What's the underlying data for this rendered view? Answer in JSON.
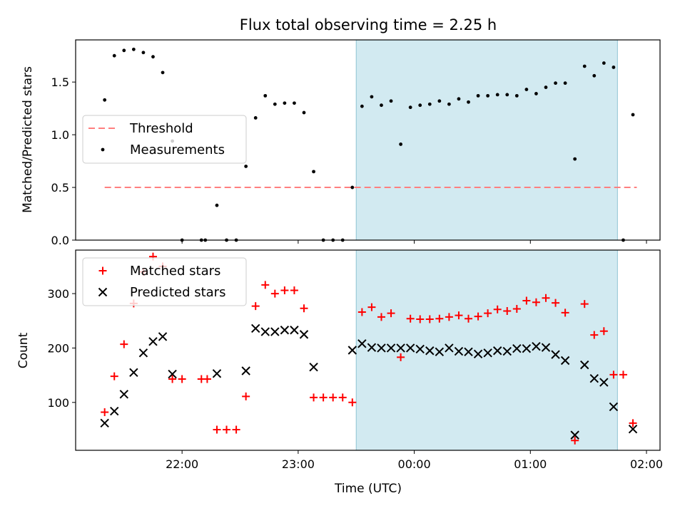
{
  "title": "Flux total observing time = 2.25 h",
  "colors": {
    "window": "#add8e6",
    "window_edge": "#8fc3d3",
    "threshold": "#ff7f7f",
    "measurement": "#000000",
    "matched": "#ff0000",
    "predicted": "#000000"
  },
  "chart_data": [
    {
      "type": "scatter",
      "panel": "top",
      "ylabel": "Matched/Predicted stars",
      "ylim": [
        0,
        1.9
      ],
      "yticks": [
        0.0,
        0.5,
        1.0,
        1.5
      ],
      "ytick_labels": [
        "0.0",
        "0.5",
        "1.0",
        "1.5"
      ],
      "xlim": [
        "21:05",
        "02:07"
      ],
      "xticks": [
        "22:00",
        "23:00",
        "00:00",
        "01:00",
        "02:00"
      ],
      "shaded_window": [
        "23:30",
        "01:45"
      ],
      "threshold": {
        "name": "Threshold",
        "y": 0.5,
        "x": [
          "21:20",
          "01:55"
        ]
      },
      "legend": {
        "location": "center-left",
        "entries": [
          "Threshold",
          "Measurements"
        ]
      },
      "series": [
        {
          "name": "Measurements",
          "marker": "dot",
          "points": [
            [
              "21:20",
              1.33
            ],
            [
              "21:25",
              1.75
            ],
            [
              "21:30",
              1.8
            ],
            [
              "21:35",
              1.81
            ],
            [
              "21:40",
              1.78
            ],
            [
              "21:45",
              1.74
            ],
            [
              "21:50",
              1.59
            ],
            [
              "21:55",
              0.94
            ],
            [
              "22:00",
              0.0
            ],
            [
              "22:10",
              0.0
            ],
            [
              "22:12",
              0.0
            ],
            [
              "22:18",
              0.33
            ],
            [
              "22:23",
              0.0
            ],
            [
              "22:28",
              0.0
            ],
            [
              "22:33",
              0.7
            ],
            [
              "22:38",
              1.16
            ],
            [
              "22:43",
              1.37
            ],
            [
              "22:48",
              1.29
            ],
            [
              "22:53",
              1.3
            ],
            [
              "22:58",
              1.3
            ],
            [
              "23:03",
              1.21
            ],
            [
              "23:08",
              0.65
            ],
            [
              "23:13",
              0.0
            ],
            [
              "23:18",
              0.0
            ],
            [
              "23:23",
              0.0
            ],
            [
              "23:28",
              0.5
            ],
            [
              "23:33",
              1.27
            ],
            [
              "23:38",
              1.36
            ],
            [
              "23:43",
              1.28
            ],
            [
              "23:48",
              1.32
            ],
            [
              "23:53",
              0.91
            ],
            [
              "23:58",
              1.26
            ],
            [
              "00:03",
              1.28
            ],
            [
              "00:08",
              1.29
            ],
            [
              "00:13",
              1.32
            ],
            [
              "00:18",
              1.29
            ],
            [
              "00:23",
              1.34
            ],
            [
              "00:28",
              1.31
            ],
            [
              "00:33",
              1.37
            ],
            [
              "00:38",
              1.37
            ],
            [
              "00:43",
              1.38
            ],
            [
              "00:48",
              1.38
            ],
            [
              "00:53",
              1.37
            ],
            [
              "00:58",
              1.43
            ],
            [
              "01:03",
              1.39
            ],
            [
              "01:08",
              1.45
            ],
            [
              "01:13",
              1.49
            ],
            [
              "01:18",
              1.49
            ],
            [
              "01:23",
              0.77
            ],
            [
              "01:28",
              1.65
            ],
            [
              "01:33",
              1.56
            ],
            [
              "01:38",
              1.68
            ],
            [
              "01:43",
              1.64
            ],
            [
              "01:48",
              0.0
            ],
            [
              "01:53",
              1.19
            ]
          ]
        }
      ]
    },
    {
      "type": "scatter",
      "panel": "bottom",
      "xlabel": "Time (UTC)",
      "ylabel": "Count",
      "ylim": [
        12,
        380
      ],
      "yticks": [
        100,
        200,
        300
      ],
      "ytick_labels": [
        "100",
        "200",
        "300"
      ],
      "xlim": [
        "21:05",
        "02:07"
      ],
      "xticks": [
        "22:00",
        "23:00",
        "00:00",
        "01:00",
        "02:00"
      ],
      "xtick_labels": [
        "22:00",
        "23:00",
        "00:00",
        "01:00",
        "02:00"
      ],
      "shaded_window": [
        "23:30",
        "01:45"
      ],
      "legend": {
        "location": "top-left",
        "entries": [
          "Matched stars",
          "Predicted stars"
        ]
      },
      "series": [
        {
          "name": "Matched stars",
          "marker": "plus",
          "points": [
            [
              "21:20",
              82
            ],
            [
              "21:25",
              148
            ],
            [
              "21:30",
              207
            ],
            [
              "21:35",
              282
            ],
            [
              "21:40",
              340
            ],
            [
              "21:45",
              368
            ],
            [
              "21:50",
              350
            ],
            [
              "21:55",
              143
            ],
            [
              "22:00",
              143
            ],
            [
              "22:10",
              143
            ],
            [
              "22:13",
              143
            ],
            [
              "22:18",
              50
            ],
            [
              "22:23",
              50
            ],
            [
              "22:28",
              50
            ],
            [
              "22:33",
              111
            ],
            [
              "22:38",
              277
            ],
            [
              "22:43",
              316
            ],
            [
              "22:48",
              300
            ],
            [
              "22:53",
              306
            ],
            [
              "22:58",
              306
            ],
            [
              "23:03",
              273
            ],
            [
              "23:08",
              109
            ],
            [
              "23:13",
              109
            ],
            [
              "23:18",
              109
            ],
            [
              "23:23",
              109
            ],
            [
              "23:28",
              100
            ],
            [
              "23:33",
              266
            ],
            [
              "23:38",
              275
            ],
            [
              "23:43",
              257
            ],
            [
              "23:48",
              264
            ],
            [
              "23:53",
              183
            ],
            [
              "23:58",
              254
            ],
            [
              "00:03",
              253
            ],
            [
              "00:08",
              253
            ],
            [
              "00:13",
              254
            ],
            [
              "00:18",
              257
            ],
            [
              "00:23",
              260
            ],
            [
              "00:28",
              254
            ],
            [
              "00:33",
              258
            ],
            [
              "00:38",
              264
            ],
            [
              "00:43",
              271
            ],
            [
              "00:48",
              268
            ],
            [
              "00:53",
              272
            ],
            [
              "00:58",
              287
            ],
            [
              "01:03",
              284
            ],
            [
              "01:08",
              292
            ],
            [
              "01:13",
              283
            ],
            [
              "01:18",
              265
            ],
            [
              "01:23",
              30
            ],
            [
              "01:28",
              281
            ],
            [
              "01:33",
              224
            ],
            [
              "01:38",
              231
            ],
            [
              "01:43",
              151
            ],
            [
              "01:48",
              151
            ],
            [
              "01:53",
              62
            ]
          ]
        },
        {
          "name": "Predicted stars",
          "marker": "x",
          "points": [
            [
              "21:20",
              62
            ],
            [
              "21:25",
              84
            ],
            [
              "21:30",
              115
            ],
            [
              "21:35",
              155
            ],
            [
              "21:40",
              191
            ],
            [
              "21:45",
              212
            ],
            [
              "21:50",
              221
            ],
            [
              "21:55",
              152
            ],
            [
              "22:18",
              153
            ],
            [
              "22:33",
              158
            ],
            [
              "22:38",
              236
            ],
            [
              "22:43",
              230
            ],
            [
              "22:48",
              230
            ],
            [
              "22:53",
              233
            ],
            [
              "22:58",
              233
            ],
            [
              "23:03",
              225
            ],
            [
              "23:08",
              165
            ],
            [
              "23:28",
              196
            ],
            [
              "23:33",
              208
            ],
            [
              "23:38",
              201
            ],
            [
              "23:43",
              200
            ],
            [
              "23:48",
              200
            ],
            [
              "23:53",
              200
            ],
            [
              "23:58",
              200
            ],
            [
              "00:03",
              198
            ],
            [
              "00:08",
              195
            ],
            [
              "00:13",
              193
            ],
            [
              "00:18",
              200
            ],
            [
              "00:23",
              194
            ],
            [
              "00:28",
              193
            ],
            [
              "00:33",
              189
            ],
            [
              "00:38",
              191
            ],
            [
              "00:43",
              195
            ],
            [
              "00:48",
              194
            ],
            [
              "00:53",
              199
            ],
            [
              "00:58",
              199
            ],
            [
              "01:03",
              203
            ],
            [
              "01:08",
              201
            ],
            [
              "01:13",
              188
            ],
            [
              "01:18",
              177
            ],
            [
              "01:23",
              40
            ],
            [
              "01:28",
              169
            ],
            [
              "01:33",
              144
            ],
            [
              "01:38",
              137
            ],
            [
              "01:43",
              92
            ],
            [
              "01:53",
              51
            ]
          ]
        }
      ]
    }
  ]
}
